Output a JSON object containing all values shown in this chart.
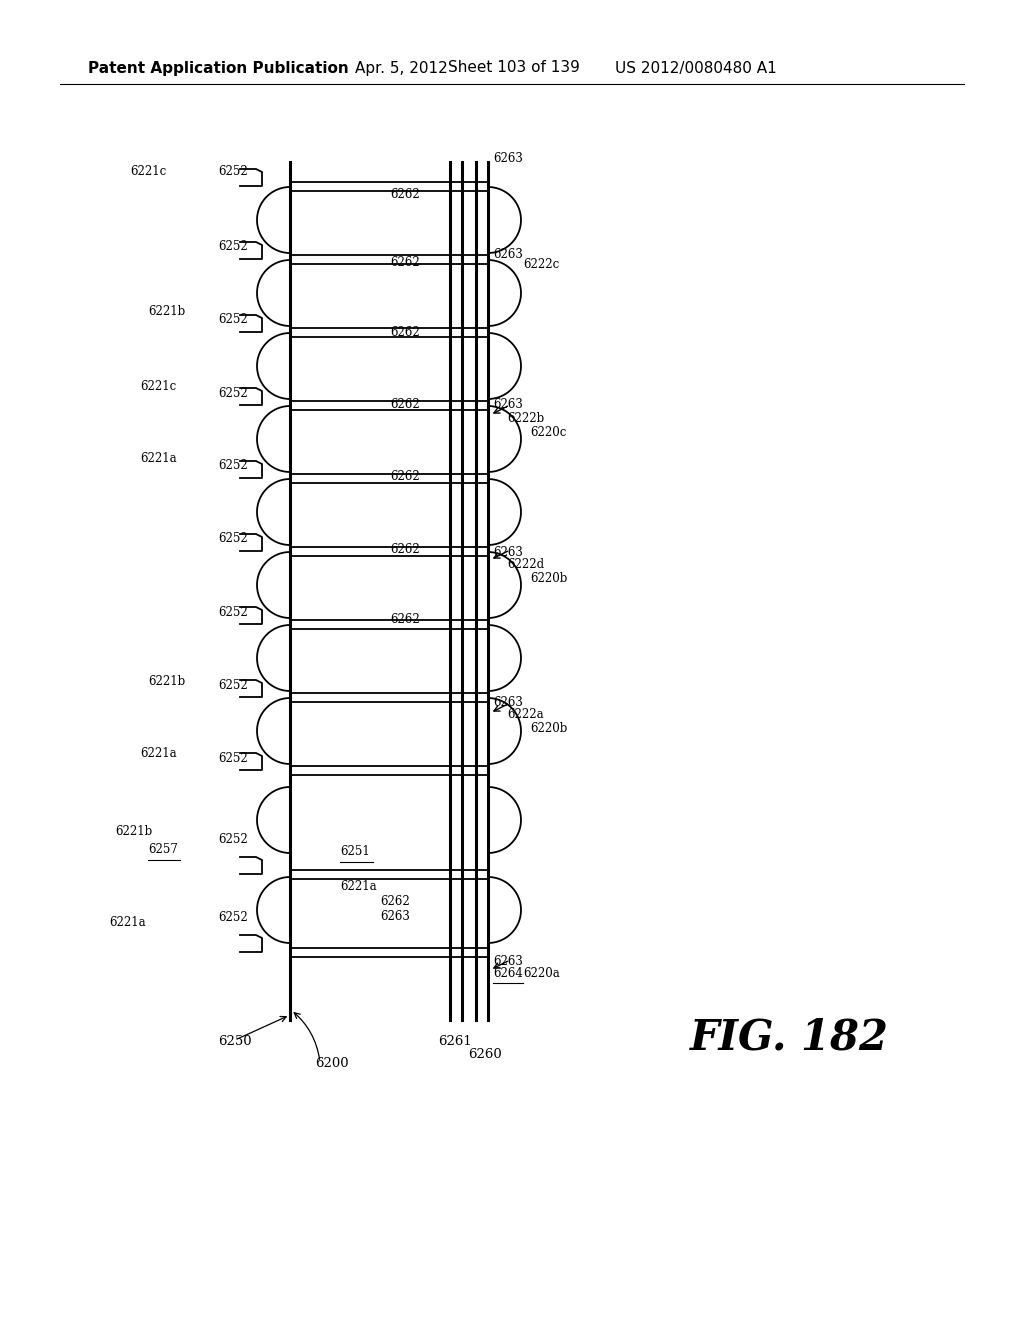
{
  "bg_color": "#ffffff",
  "header_text": "Patent Application Publication",
  "header_date": "Apr. 5, 2012",
  "header_sheet": "Sheet 103 of 139",
  "header_patent": "US 2012/0080480 A1",
  "fig_label": "FIG. 182",
  "header_fontsize": 11,
  "fig_fontsize": 30,
  "lw": 1.3,
  "lw_thick": 2.2
}
